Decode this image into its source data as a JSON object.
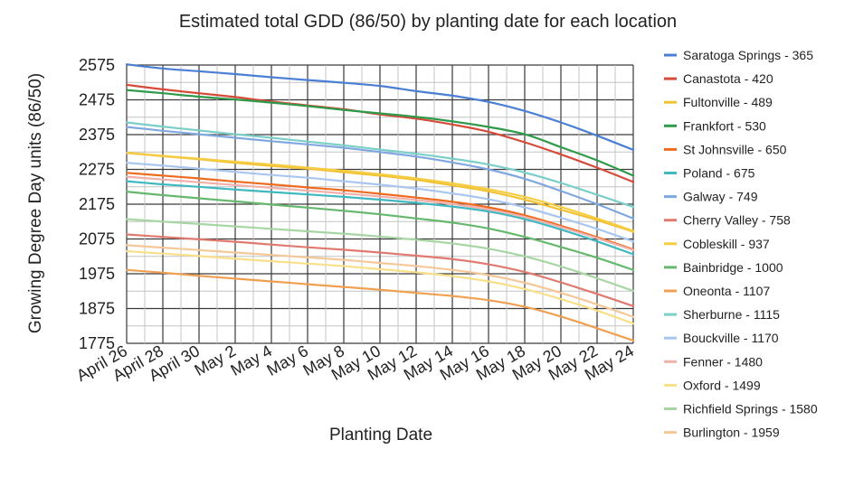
{
  "chart_data": {
    "type": "line",
    "title": "Estimated total GDD (86/50) by planting date for each location",
    "xlabel": "Planting Date",
    "ylabel": "Growing Degree Day units (86/50)",
    "categories": [
      "April 26",
      "April 28",
      "April 30",
      "May 2",
      "May 4",
      "May 6",
      "May 8",
      "May 10",
      "May 12",
      "May 14",
      "May 16",
      "May 18",
      "May 20",
      "May 22",
      "May 24"
    ],
    "yticks": [
      2575,
      2475,
      2375,
      2275,
      2175,
      2075,
      1975,
      1875,
      1775
    ],
    "ylim": [
      1775,
      2575
    ],
    "grid": true,
    "legend_position": "right",
    "series": [
      {
        "name": "Saratoga Springs - 365",
        "color": "#4a7fd4",
        "values": [
          2577,
          2565,
          2557,
          2549,
          2540,
          2532,
          2524,
          2515,
          2500,
          2487,
          2469,
          2443,
          2410,
          2372,
          2331
        ]
      },
      {
        "name": "Canastota - 420",
        "color": "#d64a3a",
        "values": [
          2518,
          2505,
          2494,
          2483,
          2470,
          2459,
          2448,
          2433,
          2421,
          2404,
          2383,
          2353,
          2318,
          2280,
          2239
        ]
      },
      {
        "name": "Fultonville - 489",
        "color": "#f2c230",
        "values": [
          2322,
          2313,
          2304,
          2294,
          2285,
          2277,
          2267,
          2257,
          2245,
          2229,
          2212,
          2188,
          2159,
          2129,
          2096
        ]
      },
      {
        "name": "Frankfort - 530",
        "color": "#2e9a4a",
        "values": [
          2503,
          2494,
          2484,
          2476,
          2467,
          2457,
          2446,
          2436,
          2426,
          2413,
          2397,
          2376,
          2339,
          2301,
          2257
        ]
      },
      {
        "name": "St Johnsville - 650",
        "color": "#ee6b1f",
        "values": [
          2265,
          2257,
          2249,
          2240,
          2232,
          2223,
          2215,
          2205,
          2194,
          2182,
          2166,
          2143,
          2113,
          2080,
          2045
        ]
      },
      {
        "name": "Poland - 675",
        "color": "#3fb8bf",
        "values": [
          2241,
          2232,
          2225,
          2217,
          2210,
          2203,
          2196,
          2188,
          2179,
          2168,
          2154,
          2132,
          2102,
          2068,
          2031
        ]
      },
      {
        "name": "Galway - 749",
        "color": "#7fa8e0",
        "values": [
          2397,
          2386,
          2376,
          2366,
          2356,
          2347,
          2337,
          2325,
          2312,
          2295,
          2275,
          2248,
          2213,
          2175,
          2134
        ]
      },
      {
        "name": "Cherry Valley - 758",
        "color": "#e07a70",
        "values": [
          2088,
          2081,
          2074,
          2067,
          2059,
          2051,
          2044,
          2036,
          2027,
          2017,
          2002,
          1980,
          1950,
          1917,
          1882
        ]
      },
      {
        "name": "Cobleskill - 937",
        "color": "#f5cc45",
        "values": [
          2323,
          2314,
          2306,
          2297,
          2289,
          2280,
          2271,
          2261,
          2249,
          2235,
          2218,
          2196,
          2167,
          2134,
          2098
        ]
      },
      {
        "name": "Bainbridge - 1000",
        "color": "#66b86e",
        "values": [
          2211,
          2201,
          2192,
          2183,
          2174,
          2165,
          2156,
          2146,
          2134,
          2122,
          2105,
          2081,
          2052,
          2021,
          1986
        ]
      },
      {
        "name": "Oneonta - 1107",
        "color": "#f0a050",
        "values": [
          1986,
          1978,
          1969,
          1961,
          1953,
          1945,
          1937,
          1929,
          1920,
          1911,
          1899,
          1880,
          1852,
          1818,
          1783
        ]
      },
      {
        "name": "Sherburne - 1115",
        "color": "#7ccfc8",
        "values": [
          2410,
          2398,
          2387,
          2376,
          2366,
          2355,
          2344,
          2332,
          2320,
          2306,
          2289,
          2266,
          2236,
          2202,
          2167
        ]
      },
      {
        "name": "Bouckville - 1170",
        "color": "#a9c6f0",
        "values": [
          2294,
          2286,
          2277,
          2268,
          2259,
          2251,
          2241,
          2231,
          2220,
          2206,
          2189,
          2166,
          2136,
          2104,
          2068
        ]
      },
      {
        "name": "Fenner - 1480",
        "color": "#f1b0aa",
        "values": [
          2254,
          2246,
          2238,
          2230,
          2222,
          2214,
          2206,
          2197,
          2187,
          2175,
          2160,
          2138,
          2109,
          2077,
          2043
        ]
      },
      {
        "name": "Oxford - 1499",
        "color": "#f8e08a",
        "values": [
          2040,
          2033,
          2026,
          2018,
          2011,
          2004,
          1997,
          1988,
          1979,
          1968,
          1953,
          1931,
          1902,
          1869,
          1832
        ]
      },
      {
        "name": "Richfield Springs - 1580",
        "color": "#a7d6a4",
        "values": [
          2132,
          2125,
          2118,
          2111,
          2104,
          2097,
          2090,
          2082,
          2073,
          2062,
          2047,
          2025,
          1996,
          1962,
          1926
        ]
      },
      {
        "name": "Burlington - 1959",
        "color": "#f5c89a",
        "values": [
          2057,
          2050,
          2043,
          2036,
          2029,
          2022,
          2015,
          2006,
          1997,
          1986,
          1971,
          1949,
          1920,
          1887,
          1851
        ]
      }
    ]
  }
}
